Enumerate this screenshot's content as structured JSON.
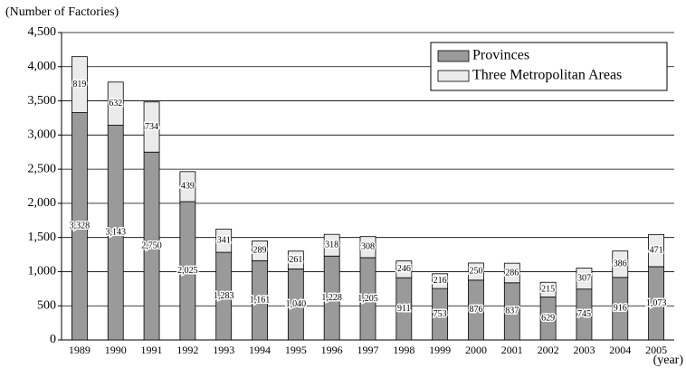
{
  "chart_data": {
    "type": "stacked_bar",
    "y_label": "(Number of Factories)",
    "x_label": "(year)",
    "categories": [
      "1989",
      "1990",
      "1991",
      "1992",
      "1993",
      "1994",
      "1995",
      "1996",
      "1997",
      "1998",
      "1999",
      "2000",
      "2001",
      "2002",
      "2003",
      "2004",
      "2005"
    ],
    "series": [
      {
        "name": "Provinces",
        "color": "#9a9a9a",
        "values": [
          3328,
          3143,
          2750,
          2025,
          1283,
          1161,
          1040,
          1228,
          1205,
          911,
          753,
          876,
          837,
          629,
          745,
          916,
          1073
        ],
        "value_labels": [
          "3,328",
          "3,143",
          "2,750",
          "2,025",
          "1,283",
          "1,161",
          "1,040",
          "1,228",
          "1,205",
          "911",
          "753",
          "876",
          "837",
          "629",
          "745",
          "916",
          "1,073"
        ]
      },
      {
        "name": "Three Metropolitan Areas",
        "color": "#ebebeb",
        "values": [
          819,
          632,
          734,
          439,
          341,
          289,
          261,
          318,
          308,
          246,
          216,
          250,
          286,
          215,
          307,
          386,
          471
        ],
        "value_labels": [
          "819",
          "632",
          "734",
          "439",
          "341",
          "289",
          "261",
          "318",
          "308",
          "246",
          "216",
          "250",
          "286",
          "215",
          "307",
          "386",
          "471"
        ]
      }
    ],
    "ylim": [
      0,
      4500
    ],
    "yticks": [
      0,
      500,
      {
        "value": 1000,
        "label": "1,000"
      },
      {
        "value": 1500,
        "label": "1,500"
      },
      {
        "value": 2000,
        "label": "2,000"
      },
      {
        "value": 2500,
        "label": "2,500"
      },
      {
        "value": 3000,
        "label": "3,000"
      },
      {
        "value": 3500,
        "label": "3,500"
      },
      {
        "value": 4000,
        "label": "4,000"
      },
      {
        "value": 4500,
        "label": "4,500"
      }
    ],
    "grid": true,
    "legend": "upper right"
  }
}
